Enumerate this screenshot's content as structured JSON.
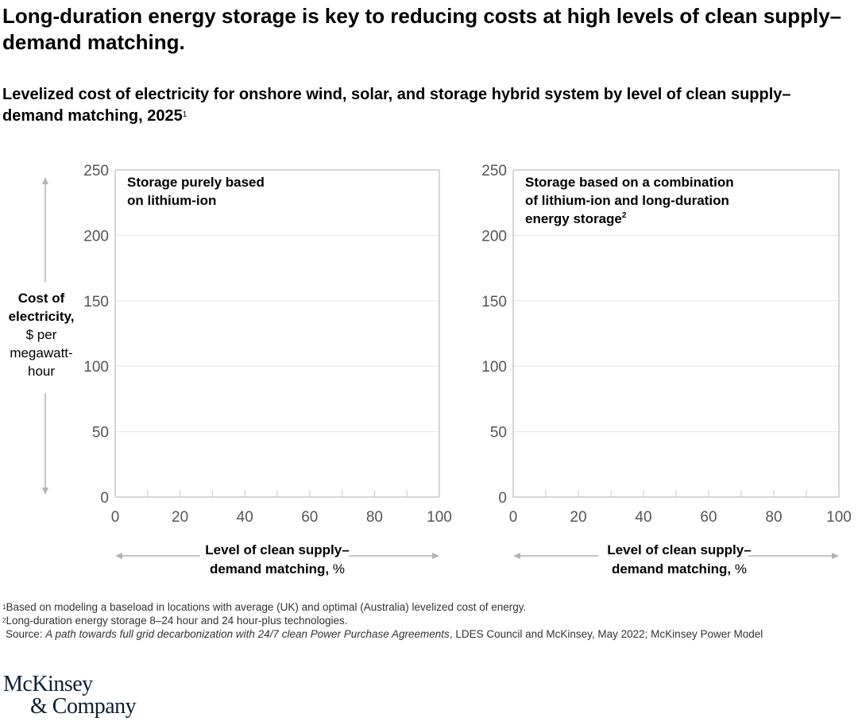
{
  "title": "Long-duration energy storage is key to reducing costs at high levels of clean supply–demand matching.",
  "subtitle": "Levelized cost of electricity for onshore wind, solar, and storage hybrid system by level of clean supply–demand matching, 2025",
  "subtitle_footnote": "1",
  "colors": {
    "grid": "#e6e6e6",
    "axis": "#c8c8c8",
    "arrow": "#b3b3b3",
    "text": "#000000",
    "tick_label": "#555555",
    "logo": "#0b1f35"
  },
  "chart_data": [
    {
      "type": "line",
      "panel_title": "Storage purely based on lithium-ion",
      "panel_title_lines": [
        "Storage purely based",
        "on lithium-ion"
      ],
      "ylabel_bold": "Cost of electricity,",
      "ylabel_regular": "$ per megawatt-hour",
      "xlabel_bold": "Level of clean supply– demand matching,",
      "xlabel_unit": "%",
      "xlim": [
        0,
        100
      ],
      "ylim": [
        0,
        250
      ],
      "xticks": [
        "0",
        "20",
        "40",
        "60",
        "80",
        "100"
      ],
      "yticks": [
        "0",
        "50",
        "100",
        "150",
        "200",
        "250"
      ],
      "grid": true,
      "series": []
    },
    {
      "type": "line",
      "panel_title": "Storage based on a combination of lithium-ion and long-duration energy storage",
      "panel_title_lines": [
        "Storage based on a combination",
        "of lithium-ion and long-duration",
        "energy storage"
      ],
      "panel_title_footnote": "2",
      "xlabel_bold": "Level of clean supply– demand matching,",
      "xlabel_unit": "%",
      "xlim": [
        0,
        100
      ],
      "ylim": [
        0,
        250
      ],
      "xticks": [
        "0",
        "20",
        "40",
        "60",
        "80",
        "100"
      ],
      "yticks": [
        "0",
        "50",
        "100",
        "150",
        "200",
        "250"
      ],
      "grid": true,
      "series": []
    }
  ],
  "ylabel": {
    "bold": "Cost of electricity,",
    "regular": "$ per megawatt-hour"
  },
  "xlabel": {
    "bold_line1": "Level of clean supply–",
    "bold_line2": "demand matching,",
    "unit": "%"
  },
  "footnotes": {
    "n1_mark": "1",
    "n1": "Based on modeling a baseload in locations with average (UK) and optimal (Australia) levelized cost of energy.",
    "n2_mark": "2",
    "n2": "Long-duration energy storage 8–24 hour and 24 hour-plus technologies.",
    "source_label": "Source: ",
    "source_italic": "A path towards full grid decarbonization with 24/7 clean Power Purchase Agreements",
    "source_rest": ", LDES Council and McKinsey, May 2022; McKinsey Power Model"
  },
  "logo": {
    "line1": "McKinsey",
    "line2": "& Company"
  }
}
